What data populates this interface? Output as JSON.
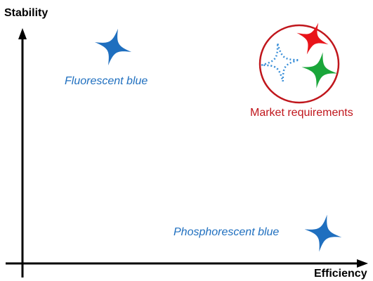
{
  "axes": {
    "y_label": "Stability",
    "x_label": "Efficiency"
  },
  "items": {
    "fluorescent": {
      "label": "Fluorescent blue",
      "color": "#1f6fbf"
    },
    "phosphorescent": {
      "label": "Phosphorescent blue",
      "color": "#1f6fbf"
    },
    "market": {
      "label": "Market requirements",
      "circle_color": "#c0161c",
      "star_colors": {
        "red": "#e8141a",
        "green": "#1aa63a",
        "blue_dotted": "#3a8fd8"
      }
    }
  },
  "icons": [
    "four-point-star-icon"
  ]
}
